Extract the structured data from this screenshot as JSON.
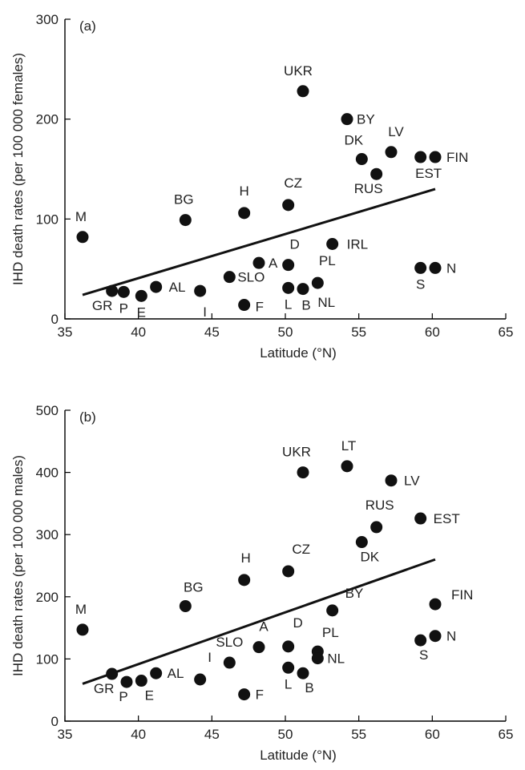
{
  "chart_data": [
    {
      "type": "scatter",
      "panel_label": "(a)",
      "xlabel": "Latitude (°N)",
      "ylabel": "IHD death rates (per 100 000 females)",
      "xlim": [
        35,
        65
      ],
      "ylim": [
        0,
        300
      ],
      "xticks": [
        35,
        40,
        45,
        50,
        55,
        60,
        65
      ],
      "yticks": [
        0,
        100,
        200,
        300
      ],
      "points": [
        {
          "label": "M",
          "x": 36.2,
          "y": 82
        },
        {
          "label": "GR",
          "x": 38.2,
          "y": 28
        },
        {
          "label": "P",
          "x": 39.0,
          "y": 27
        },
        {
          "label": "E",
          "x": 40.2,
          "y": 23
        },
        {
          "label": "AL",
          "x": 41.2,
          "y": 32
        },
        {
          "label": "BG",
          "x": 43.2,
          "y": 99
        },
        {
          "label": "I",
          "x": 44.2,
          "y": 28
        },
        {
          "label": "SLO",
          "x": 46.2,
          "y": 42
        },
        {
          "label": "H",
          "x": 47.2,
          "y": 106
        },
        {
          "label": "F",
          "x": 47.2,
          "y": 14
        },
        {
          "label": "A",
          "x": 48.2,
          "y": 56
        },
        {
          "label": "CZ",
          "x": 50.2,
          "y": 114
        },
        {
          "label": "D",
          "x": 50.2,
          "y": 54
        },
        {
          "label": "L",
          "x": 50.2,
          "y": 31
        },
        {
          "label": "B",
          "x": 51.2,
          "y": 30
        },
        {
          "label": "UKR",
          "x": 51.2,
          "y": 228
        },
        {
          "label": "PL",
          "x": 52.2,
          "y": 36
        },
        {
          "label": "IRL",
          "x": 53.2,
          "y": 75
        },
        {
          "label": "BY",
          "x": 54.2,
          "y": 200
        },
        {
          "label": "DK",
          "x": 55.2,
          "y": 160
        },
        {
          "label": "RUS",
          "x": 56.2,
          "y": 145
        },
        {
          "label": "LV",
          "x": 57.2,
          "y": 167
        },
        {
          "label": "EST",
          "x": 59.2,
          "y": 162
        },
        {
          "label": "FIN",
          "x": 60.2,
          "y": 162
        },
        {
          "label": "S",
          "x": 59.2,
          "y": 51
        },
        {
          "label": "N",
          "x": 60.2,
          "y": 51
        }
      ],
      "extra_labels": [
        "NL"
      ],
      "trendline": {
        "x": [
          36.2,
          60.2
        ],
        "y": [
          24,
          130
        ]
      }
    },
    {
      "type": "scatter",
      "panel_label": "(b)",
      "xlabel": "Latitude (°N)",
      "ylabel": "IHD death rates (per 100 000 males)",
      "xlim": [
        35,
        65
      ],
      "ylim": [
        0,
        500
      ],
      "xticks": [
        35,
        40,
        45,
        50,
        55,
        60,
        65
      ],
      "yticks": [
        0,
        100,
        200,
        300,
        400,
        500
      ],
      "points": [
        {
          "label": "M",
          "x": 36.2,
          "y": 147
        },
        {
          "label": "GR",
          "x": 38.2,
          "y": 76
        },
        {
          "label": "P",
          "x": 39.2,
          "y": 63
        },
        {
          "label": "E",
          "x": 40.2,
          "y": 65
        },
        {
          "label": "AL",
          "x": 41.2,
          "y": 77
        },
        {
          "label": "BG",
          "x": 43.2,
          "y": 185
        },
        {
          "label": "I",
          "x": 44.2,
          "y": 67
        },
        {
          "label": "SLO",
          "x": 46.2,
          "y": 94
        },
        {
          "label": "H",
          "x": 47.2,
          "y": 227
        },
        {
          "label": "F",
          "x": 47.2,
          "y": 43
        },
        {
          "label": "A",
          "x": 48.2,
          "y": 119
        },
        {
          "label": "CZ",
          "x": 50.2,
          "y": 241
        },
        {
          "label": "D",
          "x": 50.2,
          "y": 120
        },
        {
          "label": "L",
          "x": 50.2,
          "y": 86
        },
        {
          "label": "B",
          "x": 51.2,
          "y": 77
        },
        {
          "label": "UKR",
          "x": 51.2,
          "y": 400
        },
        {
          "label": "PL",
          "x": 52.2,
          "y": 112
        },
        {
          "label": "NL",
          "x": 52.2,
          "y": 101
        },
        {
          "label": "BY",
          "x": 53.2,
          "y": 178
        },
        {
          "label": "LT",
          "x": 54.2,
          "y": 410
        },
        {
          "label": "DK",
          "x": 55.2,
          "y": 288
        },
        {
          "label": "RUS",
          "x": 56.2,
          "y": 312
        },
        {
          "label": "LV",
          "x": 57.2,
          "y": 387
        },
        {
          "label": "EST",
          "x": 59.2,
          "y": 326
        },
        {
          "label": "FIN",
          "x": 60.2,
          "y": 188
        },
        {
          "label": "S",
          "x": 59.2,
          "y": 130
        },
        {
          "label": "N",
          "x": 60.2,
          "y": 137
        }
      ],
      "trendline": {
        "x": [
          36.2,
          60.2
        ],
        "y": [
          60,
          260
        ]
      }
    }
  ]
}
